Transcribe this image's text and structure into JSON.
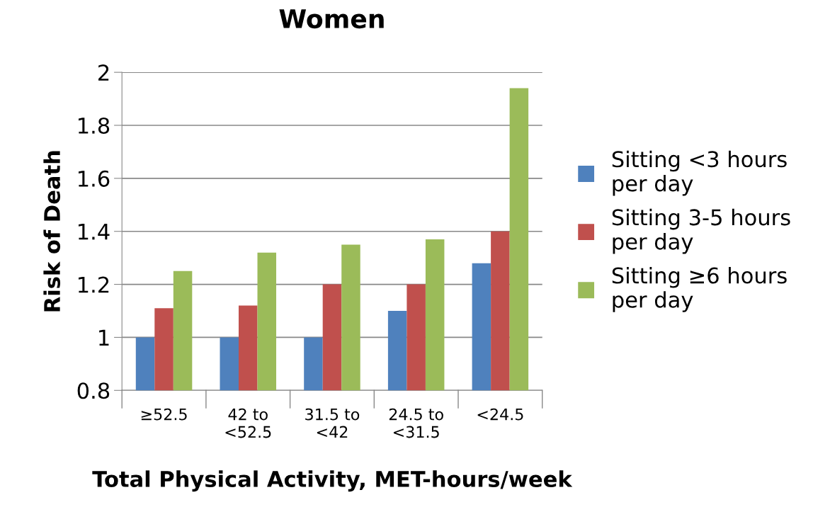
{
  "chart_data": {
    "type": "bar",
    "title": "Women",
    "xlabel": "Total Physical Activity, MET-hours/week",
    "ylabel": "Risk of Death",
    "categories": [
      "≥52.5",
      "42 to\n<52.5",
      "31.5 to\n<42",
      "24.5 to\n<31.5",
      "<24.5"
    ],
    "series": [
      {
        "name": "Sitting <3 hours\nper day",
        "color": "#4f81bd",
        "values": [
          1.0,
          1.0,
          1.0,
          1.1,
          1.28
        ]
      },
      {
        "name": "Sitting 3-5 hours\nper day",
        "color": "#c0504d",
        "values": [
          1.11,
          1.12,
          1.2,
          1.2,
          1.4
        ]
      },
      {
        "name": "Sitting ≥6 hours\nper day",
        "color": "#9bbb59",
        "values": [
          1.25,
          1.32,
          1.35,
          1.37,
          1.94
        ]
      }
    ],
    "ylim": [
      0.8,
      2
    ],
    "yticks": [
      0.8,
      1,
      1.2,
      1.4,
      1.6,
      1.8,
      2
    ],
    "grid": "y",
    "legend": "right"
  }
}
